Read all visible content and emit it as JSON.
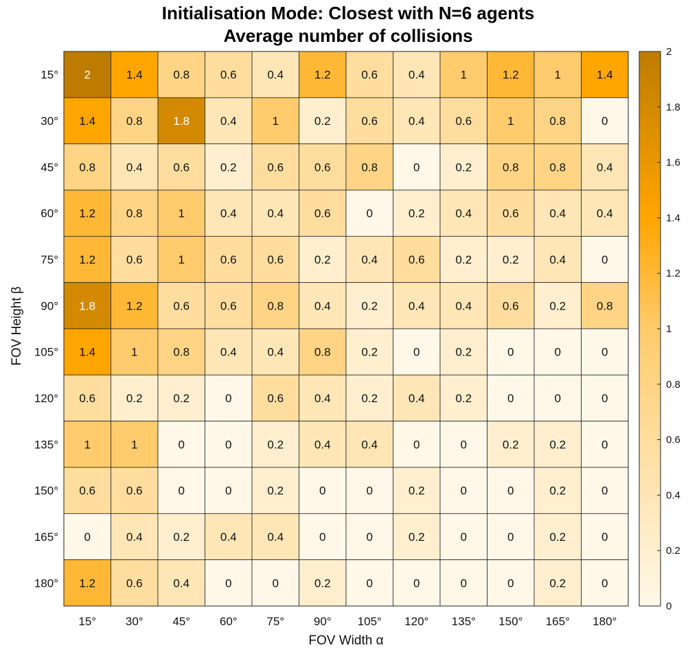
{
  "chart_data": {
    "type": "heatmap",
    "title": [
      "Initialisation Mode: Closest with N=6 agents",
      "Average number of collisions"
    ],
    "xlabel": "FOV Width α",
    "ylabel": "FOV Height β",
    "x": [
      "15°",
      "30°",
      "45°",
      "60°",
      "75°",
      "90°",
      "105°",
      "120°",
      "135°",
      "150°",
      "165°",
      "180°"
    ],
    "y": [
      "15°",
      "30°",
      "45°",
      "60°",
      "75°",
      "90°",
      "105°",
      "120°",
      "135°",
      "150°",
      "165°",
      "180°"
    ],
    "values": [
      [
        2,
        1.4,
        0.8,
        0.6,
        0.4,
        1.2,
        0.6,
        0.4,
        1,
        1.2,
        1,
        1.4
      ],
      [
        1.4,
        0.8,
        1.8,
        0.4,
        1,
        0.2,
        0.6,
        0.4,
        0.6,
        1,
        0.8,
        0
      ],
      [
        0.8,
        0.4,
        0.6,
        0.2,
        0.6,
        0.6,
        0.8,
        0,
        0.2,
        0.8,
        0.8,
        0.4
      ],
      [
        1.2,
        0.8,
        1,
        0.4,
        0.4,
        0.6,
        0,
        0.2,
        0.4,
        0.6,
        0.4,
        0.4
      ],
      [
        1.2,
        0.6,
        1,
        0.6,
        0.6,
        0.2,
        0.4,
        0.6,
        0.2,
        0.2,
        0.4,
        0
      ],
      [
        1.8,
        1.2,
        0.6,
        0.6,
        0.8,
        0.4,
        0.2,
        0.4,
        0.4,
        0.6,
        0.2,
        0.8
      ],
      [
        1.4,
        1,
        0.8,
        0.4,
        0.4,
        0.8,
        0.2,
        0,
        0.2,
        0,
        0,
        0
      ],
      [
        0.6,
        0.2,
        0.2,
        0,
        0.6,
        0.4,
        0.2,
        0.4,
        0.2,
        0,
        0,
        0
      ],
      [
        1,
        1,
        0,
        0,
        0.2,
        0.4,
        0.4,
        0,
        0,
        0.2,
        0.2,
        0
      ],
      [
        0.6,
        0.6,
        0,
        0,
        0.2,
        0,
        0,
        0.2,
        0,
        0,
        0.2,
        0
      ],
      [
        0,
        0.4,
        0.2,
        0.4,
        0.4,
        0,
        0,
        0.2,
        0,
        0,
        0.2,
        0
      ],
      [
        1.2,
        0.6,
        0.4,
        0,
        0,
        0.2,
        0,
        0,
        0,
        0,
        0.2,
        0
      ]
    ],
    "colorbar": {
      "range": [
        0,
        2
      ],
      "ticks": [
        "0",
        "0.2",
        "0.4",
        "0.6",
        "0.8",
        "1",
        "1.2",
        "1.4",
        "1.6",
        "1.8",
        "2"
      ]
    },
    "colors": {
      "low": "#fff8e8",
      "mid": "#ffa500",
      "high": "#bd7c00",
      "grid": "#222222"
    }
  }
}
